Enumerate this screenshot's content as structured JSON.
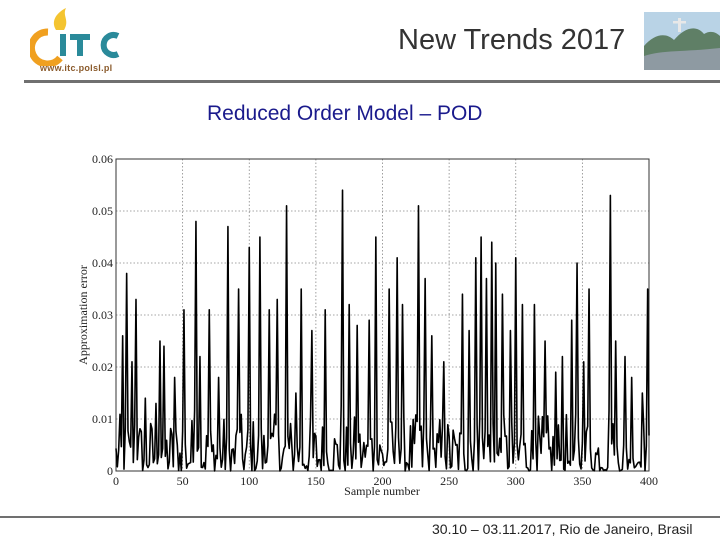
{
  "header": {
    "logo_url": "www.itc.polsl.pl",
    "conference": "New Trends 2017"
  },
  "slide": {
    "title": "Reduced Order Model – POD"
  },
  "footer": {
    "text": "30.10 – 03.11.2017, Rio de Janeiro, Brasil"
  },
  "colors": {
    "title_blue": "#1a1a8c",
    "logo_orange": "#f0a020",
    "logo_teal": "#2a8a9a",
    "rule_gray": "#707070"
  },
  "chart_data": {
    "type": "line",
    "xlabel": "Sample number",
    "ylabel": "Approximation error",
    "xlim": [
      0,
      400
    ],
    "ylim": [
      0,
      0.06
    ],
    "xticks": [
      "0",
      "50",
      "100",
      "150",
      "200",
      "250",
      "300",
      "350",
      "400"
    ],
    "yticks": [
      "0",
      "0.01",
      "0.02",
      "0.03",
      "0.04",
      "0.05",
      "0.06"
    ],
    "grid": true,
    "peaks": [
      [
        5,
        0.026
      ],
      [
        8,
        0.038
      ],
      [
        12,
        0.021
      ],
      [
        15,
        0.033
      ],
      [
        22,
        0.014
      ],
      [
        30,
        0.013
      ],
      [
        33,
        0.025
      ],
      [
        36,
        0.024
      ],
      [
        44,
        0.018
      ],
      [
        51,
        0.031
      ],
      [
        60,
        0.048
      ],
      [
        63,
        0.022
      ],
      [
        70,
        0.031
      ],
      [
        77,
        0.018
      ],
      [
        84,
        0.047
      ],
      [
        92,
        0.035
      ],
      [
        100,
        0.043
      ],
      [
        108,
        0.045
      ],
      [
        115,
        0.031
      ],
      [
        121,
        0.033
      ],
      [
        128,
        0.051
      ],
      [
        135,
        0.015
      ],
      [
        139,
        0.035
      ],
      [
        147,
        0.027
      ],
      [
        157,
        0.031
      ],
      [
        170,
        0.054
      ],
      [
        175,
        0.032
      ],
      [
        181,
        0.028
      ],
      [
        190,
        0.029
      ],
      [
        195,
        0.045
      ],
      [
        205,
        0.035
      ],
      [
        211,
        0.041
      ],
      [
        215,
        0.032
      ],
      [
        227,
        0.051
      ],
      [
        232,
        0.037
      ],
      [
        237,
        0.026
      ],
      [
        246,
        0.021
      ],
      [
        260,
        0.034
      ],
      [
        265,
        0.027
      ],
      [
        270,
        0.041
      ],
      [
        274,
        0.045
      ],
      [
        278,
        0.037
      ],
      [
        282,
        0.044
      ],
      [
        285,
        0.04
      ],
      [
        290,
        0.034
      ],
      [
        296,
        0.027
      ],
      [
        300,
        0.041
      ],
      [
        305,
        0.032
      ],
      [
        314,
        0.032
      ],
      [
        322,
        0.025
      ],
      [
        330,
        0.019
      ],
      [
        335,
        0.022
      ],
      [
        342,
        0.029
      ],
      [
        346,
        0.04
      ],
      [
        351,
        0.021
      ],
      [
        355,
        0.035
      ],
      [
        371,
        0.053
      ],
      [
        375,
        0.025
      ],
      [
        382,
        0.022
      ],
      [
        387,
        0.018
      ],
      [
        395,
        0.015
      ],
      [
        399,
        0.035
      ]
    ],
    "baseline_level": 0.005,
    "n_samples": 400
  }
}
